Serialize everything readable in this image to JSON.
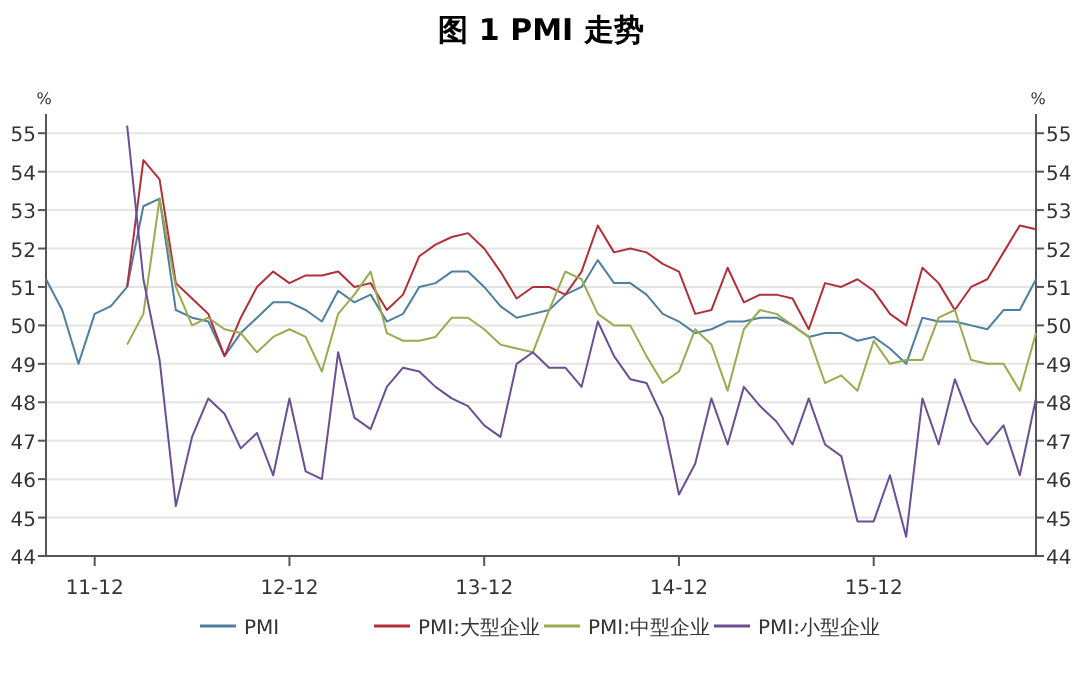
{
  "chart_data": {
    "type": "line",
    "title": "图 1   PMI 走势",
    "ylabel": "%",
    "y2label": "%",
    "xlim": [
      "2011-09",
      "2016-10"
    ],
    "xticks": [
      {
        "value": "2011-12",
        "label": "11-12"
      },
      {
        "value": "2012-12",
        "label": "12-12"
      },
      {
        "value": "2013-12",
        "label": "13-12"
      },
      {
        "value": "2014-12",
        "label": "14-12"
      },
      {
        "value": "2015-12",
        "label": "15-12"
      }
    ],
    "ylim": [
      44,
      55.5
    ],
    "yticks": [
      44,
      45,
      46,
      47,
      48,
      49,
      50,
      51,
      52,
      53,
      54,
      55
    ],
    "y2lim": [
      44,
      55.5
    ],
    "y2ticks": [
      44,
      45,
      46,
      47,
      48,
      49,
      50,
      51,
      52,
      53,
      54,
      55
    ],
    "grid": "y",
    "legend": "bottom",
    "series": [
      {
        "name": "PMI",
        "color": "#4f7f9f",
        "x": [
          "2011-09",
          "2011-10",
          "2011-11",
          "2011-12",
          "2012-01",
          "2012-02",
          "2012-03",
          "2012-04",
          "2012-05",
          "2012-06",
          "2012-07",
          "2012-08",
          "2012-09",
          "2012-10",
          "2012-11",
          "2012-12",
          "2013-01",
          "2013-02",
          "2013-03",
          "2013-04",
          "2013-05",
          "2013-06",
          "2013-07",
          "2013-08",
          "2013-09",
          "2013-10",
          "2013-11",
          "2013-12",
          "2014-01",
          "2014-02",
          "2014-03",
          "2014-04",
          "2014-05",
          "2014-06",
          "2014-07",
          "2014-08",
          "2014-09",
          "2014-10",
          "2014-11",
          "2014-12",
          "2015-01",
          "2015-02",
          "2015-03",
          "2015-04",
          "2015-05",
          "2015-06",
          "2015-07",
          "2015-08",
          "2015-09",
          "2015-10",
          "2015-11",
          "2015-12",
          "2016-01",
          "2016-02",
          "2016-03",
          "2016-04",
          "2016-05",
          "2016-06",
          "2016-07",
          "2016-08",
          "2016-09",
          "2016-10"
        ],
        "values": [
          51.2,
          50.4,
          49.0,
          50.3,
          50.5,
          51.0,
          53.1,
          53.3,
          50.4,
          50.2,
          50.1,
          49.2,
          49.8,
          50.2,
          50.6,
          50.6,
          50.4,
          50.1,
          50.9,
          50.6,
          50.8,
          50.1,
          50.3,
          51.0,
          51.1,
          51.4,
          51.4,
          51.0,
          50.5,
          50.2,
          50.3,
          50.4,
          50.8,
          51.0,
          51.7,
          51.1,
          51.1,
          50.8,
          50.3,
          50.1,
          49.8,
          49.9,
          50.1,
          50.1,
          50.2,
          50.2,
          50.0,
          49.7,
          49.8,
          49.8,
          49.6,
          49.7,
          49.4,
          49.0,
          50.2,
          50.1,
          50.1,
          50.0,
          49.9,
          50.4,
          50.4,
          51.2
        ]
      },
      {
        "name": "PMI:大型企业",
        "color": "#b0303a",
        "x": [
          "2012-02",
          "2012-03",
          "2012-04",
          "2012-05",
          "2012-06",
          "2012-07",
          "2012-08",
          "2012-09",
          "2012-10",
          "2012-11",
          "2012-12",
          "2013-01",
          "2013-02",
          "2013-03",
          "2013-04",
          "2013-05",
          "2013-06",
          "2013-07",
          "2013-08",
          "2013-09",
          "2013-10",
          "2013-11",
          "2013-12",
          "2014-01",
          "2014-02",
          "2014-03",
          "2014-04",
          "2014-05",
          "2014-06",
          "2014-07",
          "2014-08",
          "2014-09",
          "2014-10",
          "2014-11",
          "2014-12",
          "2015-01",
          "2015-02",
          "2015-03",
          "2015-04",
          "2015-05",
          "2015-06",
          "2015-07",
          "2015-08",
          "2015-09",
          "2015-10",
          "2015-11",
          "2015-12",
          "2016-01",
          "2016-02",
          "2016-03",
          "2016-04",
          "2016-05",
          "2016-06",
          "2016-07",
          "2016-08",
          "2016-09",
          "2016-10"
        ],
        "values": [
          51.0,
          54.3,
          53.8,
          51.1,
          50.7,
          50.3,
          49.2,
          50.2,
          51.0,
          51.4,
          51.1,
          51.3,
          51.3,
          51.4,
          51.0,
          51.1,
          50.4,
          50.8,
          51.8,
          52.1,
          52.3,
          52.4,
          52.0,
          51.4,
          50.7,
          51.0,
          51.0,
          50.8,
          51.4,
          52.6,
          51.9,
          52.0,
          51.9,
          51.6,
          51.4,
          50.3,
          50.4,
          51.5,
          50.6,
          50.8,
          50.8,
          50.7,
          49.9,
          51.1,
          51.0,
          51.2,
          50.9,
          50.3,
          50.0,
          51.5,
          51.1,
          50.4,
          51.0,
          51.2,
          51.9,
          52.6,
          52.5
        ]
      },
      {
        "name": "PMI:中型企业",
        "color": "#9aaa50",
        "x": [
          "2012-02",
          "2012-03",
          "2012-04",
          "2012-05",
          "2012-06",
          "2012-07",
          "2012-08",
          "2012-09",
          "2012-10",
          "2012-11",
          "2012-12",
          "2013-01",
          "2013-02",
          "2013-03",
          "2013-04",
          "2013-05",
          "2013-06",
          "2013-07",
          "2013-08",
          "2013-09",
          "2013-10",
          "2013-11",
          "2013-12",
          "2014-01",
          "2014-02",
          "2014-03",
          "2014-04",
          "2014-05",
          "2014-06",
          "2014-07",
          "2014-08",
          "2014-09",
          "2014-10",
          "2014-11",
          "2014-12",
          "2015-01",
          "2015-02",
          "2015-03",
          "2015-04",
          "2015-05",
          "2015-06",
          "2015-07",
          "2015-08",
          "2015-09",
          "2015-10",
          "2015-11",
          "2015-12",
          "2016-01",
          "2016-02",
          "2016-03",
          "2016-04",
          "2016-05",
          "2016-06",
          "2016-07",
          "2016-08",
          "2016-09",
          "2016-10"
        ],
        "values": [
          49.5,
          50.3,
          53.3,
          51.0,
          50.0,
          50.2,
          49.9,
          49.8,
          49.3,
          49.7,
          49.9,
          49.7,
          48.8,
          50.3,
          50.8,
          51.4,
          49.8,
          49.6,
          49.6,
          49.7,
          50.2,
          50.2,
          49.9,
          49.5,
          49.4,
          49.3,
          50.4,
          51.4,
          51.2,
          50.3,
          50.0,
          50.0,
          49.2,
          48.5,
          48.8,
          49.9,
          49.5,
          48.3,
          49.9,
          50.4,
          50.3,
          50.0,
          49.7,
          48.5,
          48.7,
          48.3,
          49.6,
          49.0,
          49.1,
          49.1,
          50.2,
          50.4,
          49.1,
          49.0,
          49.0,
          48.3,
          49.8
        ]
      },
      {
        "name": "PMI:小型企业",
        "color": "#6a4f92",
        "x": [
          "2012-02",
          "2012-03",
          "2012-04",
          "2012-05",
          "2012-06",
          "2012-07",
          "2012-08",
          "2012-09",
          "2012-10",
          "2012-11",
          "2012-12",
          "2013-01",
          "2013-02",
          "2013-03",
          "2013-04",
          "2013-05",
          "2013-06",
          "2013-07",
          "2013-08",
          "2013-09",
          "2013-10",
          "2013-11",
          "2013-12",
          "2014-01",
          "2014-02",
          "2014-03",
          "2014-04",
          "2014-05",
          "2014-06",
          "2014-07",
          "2014-08",
          "2014-09",
          "2014-10",
          "2014-11",
          "2014-12",
          "2015-01",
          "2015-02",
          "2015-03",
          "2015-04",
          "2015-05",
          "2015-06",
          "2015-07",
          "2015-08",
          "2015-09",
          "2015-10",
          "2015-11",
          "2015-12",
          "2016-01",
          "2016-02",
          "2016-03",
          "2016-04",
          "2016-05",
          "2016-06",
          "2016-07",
          "2016-08",
          "2016-09",
          "2016-10"
        ],
        "values": [
          55.2,
          51.2,
          49.1,
          45.3,
          47.1,
          48.1,
          47.7,
          46.8,
          47.2,
          46.1,
          48.1,
          46.2,
          46.0,
          49.3,
          47.6,
          47.3,
          48.4,
          48.9,
          48.8,
          48.4,
          48.1,
          47.9,
          47.4,
          47.1,
          49.0,
          49.3,
          48.9,
          48.9,
          48.4,
          50.1,
          49.2,
          48.6,
          48.5,
          47.6,
          45.6,
          46.4,
          48.1,
          46.9,
          48.4,
          47.9,
          47.5,
          46.9,
          48.1,
          46.9,
          46.6,
          44.9,
          44.9,
          46.1,
          44.5,
          48.1,
          46.9,
          48.6,
          47.5,
          46.9,
          47.4,
          46.1,
          48.1
        ]
      }
    ]
  }
}
